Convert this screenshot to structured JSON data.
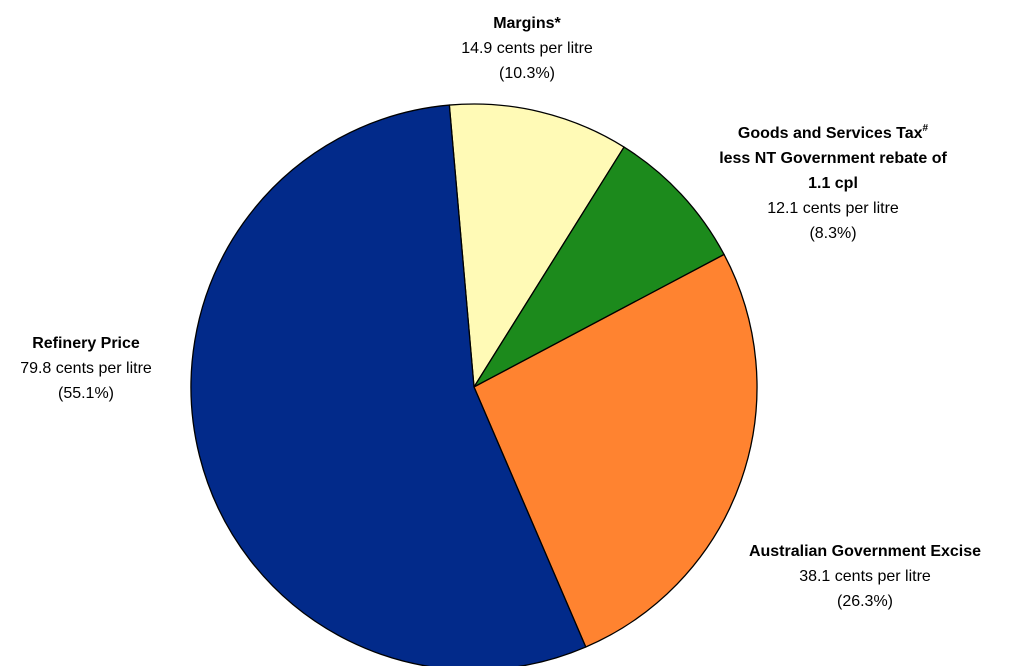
{
  "chart_data": {
    "type": "pie",
    "start_angle_deg": -5,
    "direction": "clockwise",
    "slices": [
      {
        "key": "margins",
        "name_lines": [
          "Margins*"
        ],
        "value": 14.9,
        "value_text": "14.9 cents per litre",
        "percent_text": "(10.3%)",
        "color": "#FFFAB6"
      },
      {
        "key": "gst",
        "name_lines": [
          "Goods and Services Tax",
          "less NT Government rebate of",
          "1.1 cpl"
        ],
        "name_sup": "#",
        "value": 12.1,
        "value_text": "12.1 cents per litre",
        "percent_text": "(8.3%)",
        "color": "#1C8A1C"
      },
      {
        "key": "excise",
        "name_lines": [
          "Australian Government Excise"
        ],
        "value": 38.1,
        "value_text": "38.1 cents per litre",
        "percent_text": "(26.3%)",
        "color": "#FF8330"
      },
      {
        "key": "refinery",
        "name_lines": [
          "Refinery Price"
        ],
        "value": 79.8,
        "value_text": "79.8 cents per litre",
        "percent_text": "(55.1%)",
        "color": "#022A8A"
      }
    ]
  }
}
